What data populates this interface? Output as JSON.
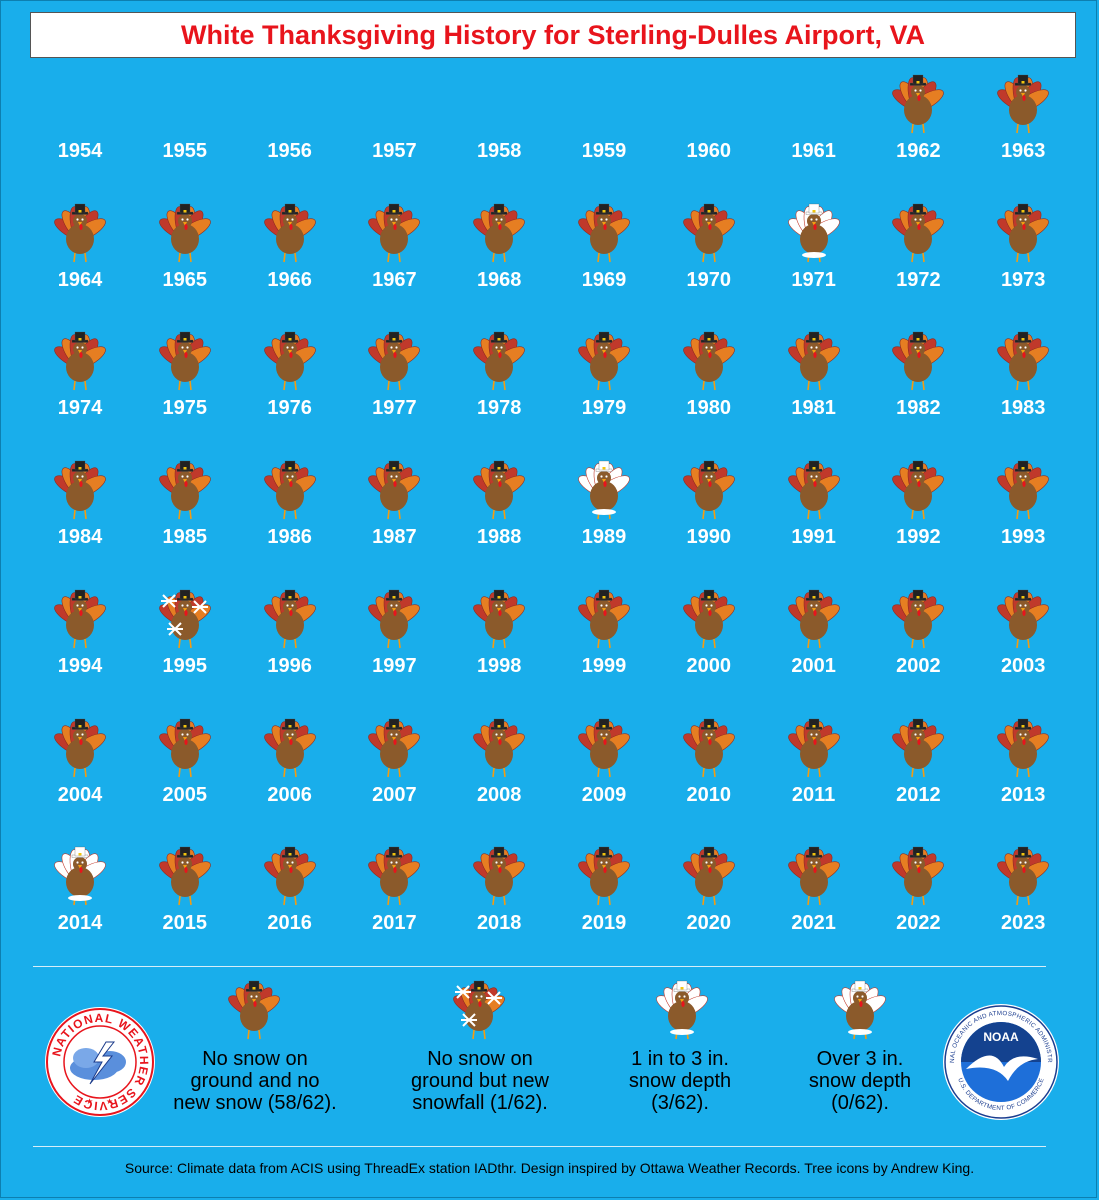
{
  "title": "White Thanksgiving History for Sterling-Dulles Airport, VA",
  "colors": {
    "background": "#19aeeb",
    "title_text": "#e8141c",
    "year_text": "#ffffff"
  },
  "years": [
    {
      "year": "1954",
      "category": "none"
    },
    {
      "year": "1955",
      "category": "none"
    },
    {
      "year": "1956",
      "category": "none"
    },
    {
      "year": "1957",
      "category": "none"
    },
    {
      "year": "1958",
      "category": "none"
    },
    {
      "year": "1959",
      "category": "none"
    },
    {
      "year": "1960",
      "category": "none"
    },
    {
      "year": "1961",
      "category": "none"
    },
    {
      "year": "1962",
      "category": "no_snow"
    },
    {
      "year": "1963",
      "category": "no_snow"
    },
    {
      "year": "1964",
      "category": "no_snow"
    },
    {
      "year": "1965",
      "category": "no_snow"
    },
    {
      "year": "1966",
      "category": "no_snow"
    },
    {
      "year": "1967",
      "category": "no_snow"
    },
    {
      "year": "1968",
      "category": "no_snow"
    },
    {
      "year": "1969",
      "category": "no_snow"
    },
    {
      "year": "1970",
      "category": "no_snow"
    },
    {
      "year": "1971",
      "category": "depth_1_3"
    },
    {
      "year": "1972",
      "category": "no_snow"
    },
    {
      "year": "1973",
      "category": "no_snow"
    },
    {
      "year": "1974",
      "category": "no_snow"
    },
    {
      "year": "1975",
      "category": "no_snow"
    },
    {
      "year": "1976",
      "category": "no_snow"
    },
    {
      "year": "1977",
      "category": "no_snow"
    },
    {
      "year": "1978",
      "category": "no_snow"
    },
    {
      "year": "1979",
      "category": "no_snow"
    },
    {
      "year": "1980",
      "category": "no_snow"
    },
    {
      "year": "1981",
      "category": "no_snow"
    },
    {
      "year": "1982",
      "category": "no_snow"
    },
    {
      "year": "1983",
      "category": "no_snow"
    },
    {
      "year": "1984",
      "category": "no_snow"
    },
    {
      "year": "1985",
      "category": "no_snow"
    },
    {
      "year": "1986",
      "category": "no_snow"
    },
    {
      "year": "1987",
      "category": "no_snow"
    },
    {
      "year": "1988",
      "category": "no_snow"
    },
    {
      "year": "1989",
      "category": "depth_1_3"
    },
    {
      "year": "1990",
      "category": "no_snow"
    },
    {
      "year": "1991",
      "category": "no_snow"
    },
    {
      "year": "1992",
      "category": "no_snow"
    },
    {
      "year": "1993",
      "category": "no_snow"
    },
    {
      "year": "1994",
      "category": "no_snow"
    },
    {
      "year": "1995",
      "category": "new_snowfall"
    },
    {
      "year": "1996",
      "category": "no_snow"
    },
    {
      "year": "1997",
      "category": "no_snow"
    },
    {
      "year": "1998",
      "category": "no_snow"
    },
    {
      "year": "1999",
      "category": "no_snow"
    },
    {
      "year": "2000",
      "category": "no_snow"
    },
    {
      "year": "2001",
      "category": "no_snow"
    },
    {
      "year": "2002",
      "category": "no_snow"
    },
    {
      "year": "2003",
      "category": "no_snow"
    },
    {
      "year": "2004",
      "category": "no_snow"
    },
    {
      "year": "2005",
      "category": "no_snow"
    },
    {
      "year": "2006",
      "category": "no_snow"
    },
    {
      "year": "2007",
      "category": "no_snow"
    },
    {
      "year": "2008",
      "category": "no_snow"
    },
    {
      "year": "2009",
      "category": "no_snow"
    },
    {
      "year": "2010",
      "category": "no_snow"
    },
    {
      "year": "2011",
      "category": "no_snow"
    },
    {
      "year": "2012",
      "category": "no_snow"
    },
    {
      "year": "2013",
      "category": "no_snow"
    },
    {
      "year": "2014",
      "category": "depth_1_3"
    },
    {
      "year": "2015",
      "category": "no_snow"
    },
    {
      "year": "2016",
      "category": "no_snow"
    },
    {
      "year": "2017",
      "category": "no_snow"
    },
    {
      "year": "2018",
      "category": "no_snow"
    },
    {
      "year": "2019",
      "category": "no_snow"
    },
    {
      "year": "2020",
      "category": "no_snow"
    },
    {
      "year": "2021",
      "category": "no_snow"
    },
    {
      "year": "2022",
      "category": "no_snow"
    },
    {
      "year": "2023",
      "category": "no_snow"
    }
  ],
  "legend": [
    {
      "category": "no_snow",
      "icon": "turkey-icon",
      "lines": [
        "No snow on",
        "ground and no",
        "new snow (58/62)."
      ]
    },
    {
      "category": "new_snowfall",
      "icon": "snowflake-turkey-icon",
      "lines": [
        "No snow on",
        "ground but new",
        "snowfall (1/62)."
      ]
    },
    {
      "category": "depth_1_3",
      "icon": "snowy-turkey-icon",
      "lines": [
        "1 in to 3 in.",
        "snow depth",
        "(3/62)."
      ]
    },
    {
      "category": "depth_over_3",
      "icon": "very-snowy-turkey-icon",
      "lines": [
        "Over 3 in.",
        "snow depth",
        "(0/62)."
      ]
    }
  ],
  "logos": {
    "nws": {
      "icon": "nws-logo",
      "text": "NATIONAL WEATHER SERVICE"
    },
    "noaa": {
      "icon": "noaa-logo",
      "center": "NOAA",
      "ring": "NATIONAL OCEANIC AND ATMOSPHERIC ADMINISTRATION",
      "ring_bottom": "U.S. DEPARTMENT OF COMMERCE"
    }
  },
  "source": "Source: Climate data from ACIS using ThreadEx station IADthr. Design inspired by Ottawa Weather Records. Tree icons by Andrew King."
}
